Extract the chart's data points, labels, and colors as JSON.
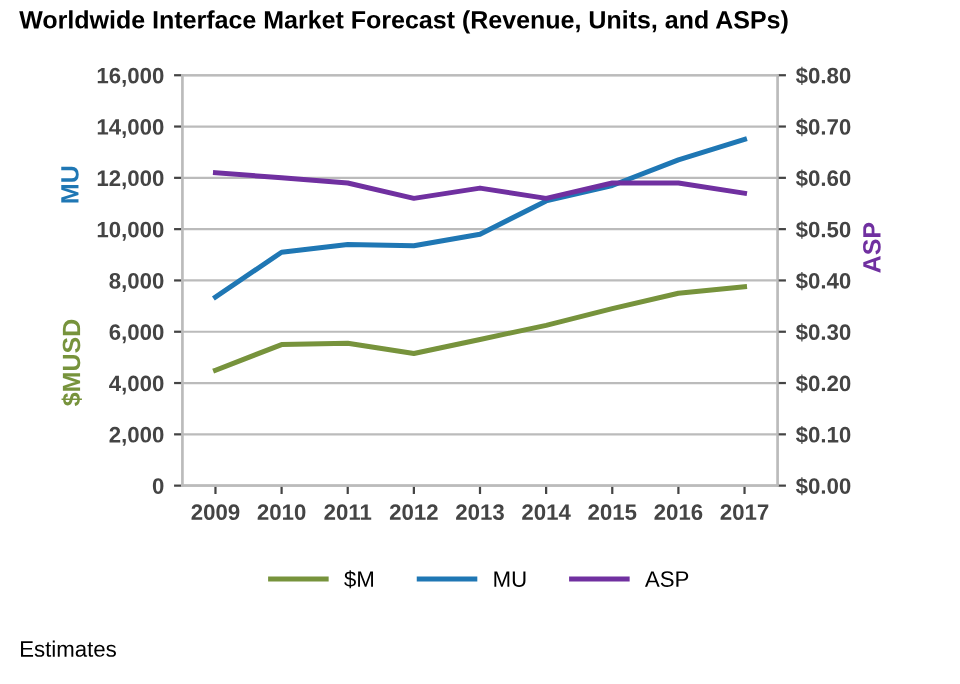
{
  "chart_data": {
    "type": "line",
    "title": "Worldwide Interface Market Forecast (Revenue, Units, and ASPs)",
    "ylabel": "$MUSD",
    "y2label": "ASP",
    "categories": [
      "2009",
      "2010",
      "2011",
      "2012",
      "2013",
      "2014",
      "2015",
      "2016",
      "2017"
    ],
    "series": [
      {
        "name": "$M",
        "color": "#77933c",
        "values": [
          4500,
          5500,
          5550,
          5150,
          5700,
          6250,
          6900,
          7500,
          7750
        ]
      },
      {
        "name": "MU",
        "color": "#1f77b4",
        "values": [
          7350,
          9100,
          9400,
          9350,
          9800,
          11100,
          11700,
          12700,
          13500
        ]
      },
      {
        "name": "ASP",
        "color": "#7030a0",
        "axis": "y2",
        "values": [
          0.61,
          0.6,
          0.59,
          0.56,
          0.58,
          0.56,
          0.59,
          0.59,
          0.57
        ]
      }
    ],
    "ylim": [
      0,
      16000
    ],
    "yticks": [
      {
        "value": 0,
        "label": "0"
      },
      {
        "value": 2000,
        "label": "2,000"
      },
      {
        "value": 4000,
        "label": "4,000"
      },
      {
        "value": 6000,
        "label": "6,000"
      },
      {
        "value": 8000,
        "label": "8,000"
      },
      {
        "value": 10000,
        "label": "10,000"
      },
      {
        "value": 12000,
        "label": "12,000"
      },
      {
        "value": 14000,
        "label": "14,000"
      },
      {
        "value": 16000,
        "label": "16,000"
      }
    ],
    "y2lim": [
      0,
      0.8
    ],
    "y2ticks": [
      {
        "value": 0,
        "label": "$0.00"
      },
      {
        "value": 0.1,
        "label": "$0.10"
      },
      {
        "value": 0.2,
        "label": "$0.20"
      },
      {
        "value": 0.3,
        "label": "$0.30"
      },
      {
        "value": 0.4,
        "label": "$0.40"
      },
      {
        "value": 0.5,
        "label": "$0.50"
      },
      {
        "value": 0.6,
        "label": "$0.60"
      },
      {
        "value": 0.7,
        "label": "$0.70"
      },
      {
        "value": 0.8,
        "label": "$0.80"
      }
    ],
    "grid": "y",
    "legend": "bottom",
    "marker": "none",
    "line_style": "solid",
    "annotations": [
      "MU",
      "Estimates"
    ]
  }
}
